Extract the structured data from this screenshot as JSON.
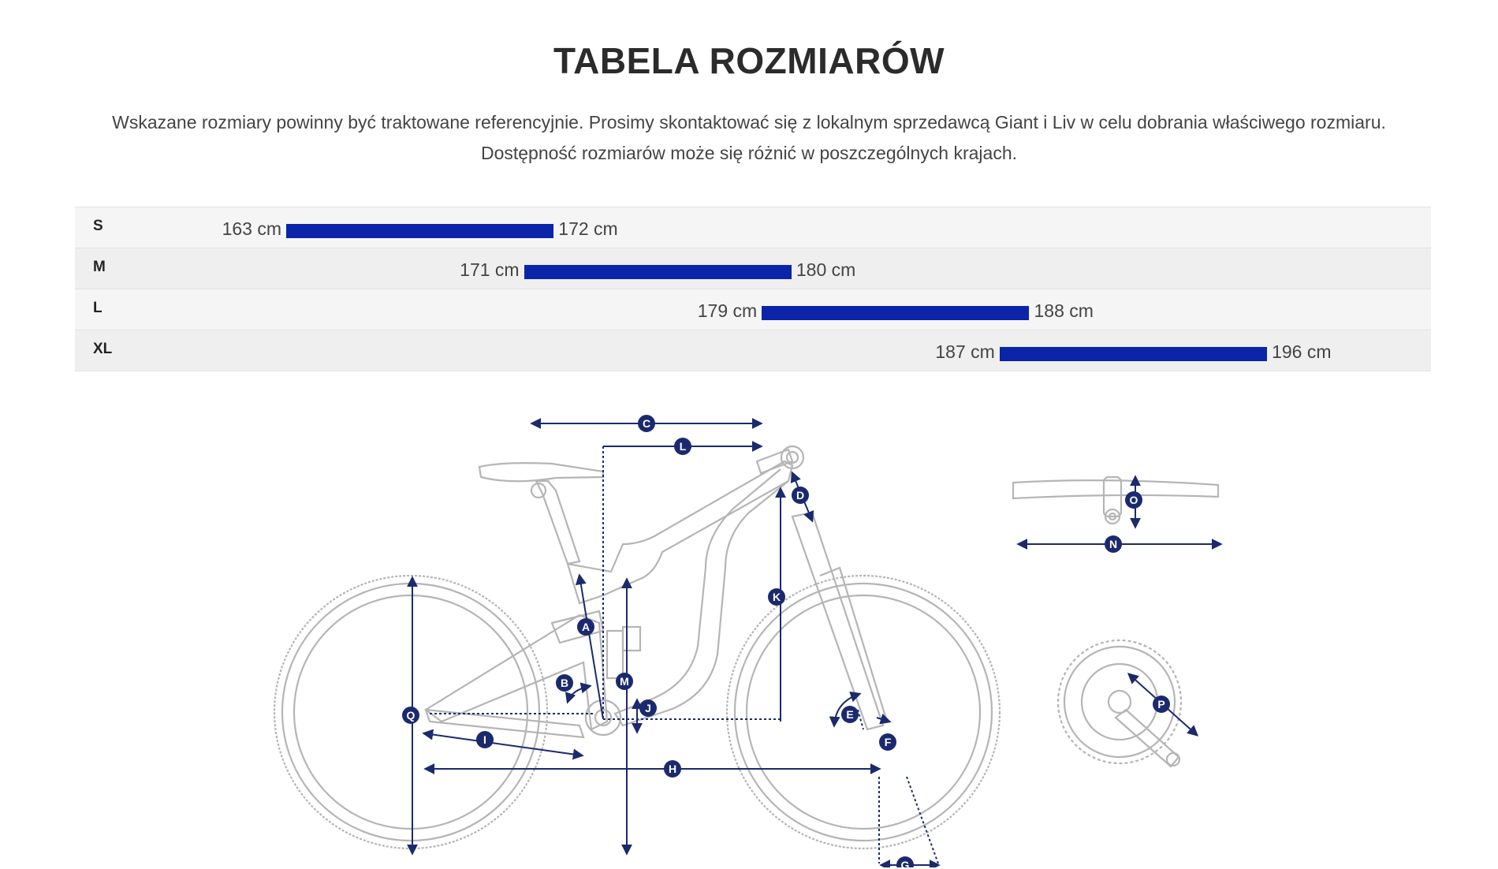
{
  "page": {
    "title": "TABELA ROZMIARÓW",
    "subtitle_line1": "Wskazane rozmiary powinny być traktowane referencyjnie. Prosimy skontaktować się z lokalnym sprzedawcą Giant i Liv w celu dobrania właściwego rozmiaru.",
    "subtitle_line2": "Dostępność rozmiarów może się różnić w poszczególnych krajach."
  },
  "sizes": [
    {
      "size": "S",
      "min_label": "163 cm",
      "max_label": "172 cm",
      "min": 163,
      "max": 172
    },
    {
      "size": "M",
      "min_label": "171 cm",
      "max_label": "180 cm",
      "min": 171,
      "max": 180
    },
    {
      "size": "L",
      "min_label": "179 cm",
      "max_label": "188 cm",
      "min": 179,
      "max": 188
    },
    {
      "size": "XL",
      "min_label": "187 cm",
      "max_label": "196 cm",
      "min": 187,
      "max": 196
    }
  ],
  "colors": {
    "bar": "#0b24a8",
    "marker": "#1b2a6e",
    "bike_line": "#b5b5b5"
  },
  "diagram": {
    "markers": [
      "A",
      "B",
      "C",
      "D",
      "E",
      "F",
      "G",
      "H",
      "I",
      "J",
      "K",
      "L",
      "M",
      "N",
      "O",
      "P",
      "Q"
    ]
  }
}
